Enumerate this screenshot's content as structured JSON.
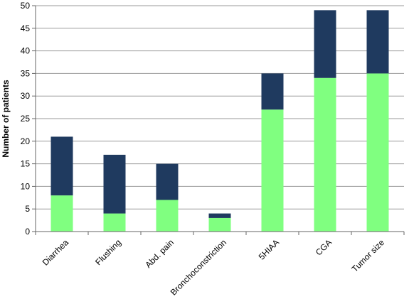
{
  "chart_data": {
    "type": "bar",
    "stacked": true,
    "categories": [
      "Diarrhea",
      "Flushing",
      "Abd. pain",
      "Bronchoconstriction",
      "5HIAA",
      "CGA",
      "Tumor size"
    ],
    "series": [
      {
        "values": [
          8,
          4,
          7,
          3,
          27,
          34,
          35
        ],
        "color": "#80ff80"
      },
      {
        "values": [
          13,
          13,
          8,
          1,
          8,
          15,
          14
        ],
        "color": "#1f3a5f"
      }
    ],
    "title": "",
    "xlabel": "",
    "ylabel": "Number of patients",
    "ylim": [
      0,
      50
    ],
    "yticks": [
      0,
      5,
      10,
      15,
      20,
      25,
      30,
      35,
      40,
      45,
      50
    ],
    "grid": true,
    "legend": "none"
  }
}
